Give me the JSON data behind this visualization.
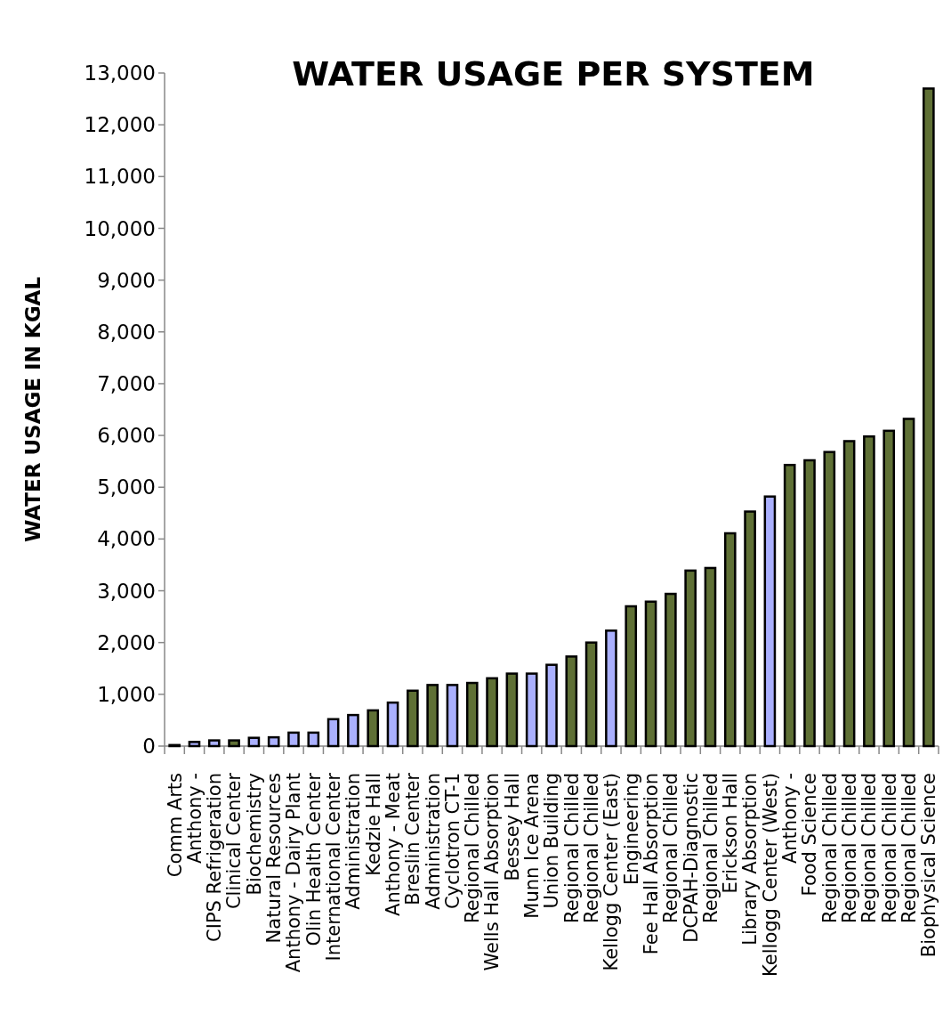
{
  "chart_data": {
    "type": "bar",
    "title": "WATER USAGE PER SYSTEM",
    "ylabel": "WATER USAGE IN KGAL",
    "categories": [
      "Comm Arts",
      "Anthony -",
      "CIPS Refrigeration",
      "Clinical Center",
      "Biochemistry",
      "Natural Resources",
      "Anthony - Dairy Plant",
      "Olin Health Center",
      "International Center",
      "Administration",
      "Kedzie Hall",
      "Anthony - Meat",
      "Breslin Center",
      "Administration",
      "Cyclotron CT-1",
      "Regional Chilled",
      "Wells Hall Absorption",
      "Bessey Hall",
      "Munn Ice Arena",
      "Union Building",
      "Regional Chilled",
      "Regional Chilled",
      "Kellogg Center (East)",
      "Engineering",
      "Fee Hall Absorption",
      "Regional Chilled",
      "DCPAH-Diagnostic",
      "Regional Chilled",
      "Erickson Hall",
      "Library Absorption",
      "Kellogg Center (West)",
      "Anthony -",
      "Food Science",
      "Regional Chilled",
      "Regional Chilled",
      "Regional Chilled",
      "Regional Chilled",
      "Regional Chilled",
      "Biophysical Science"
    ],
    "values": [
      20,
      80,
      110,
      110,
      160,
      170,
      260,
      260,
      520,
      600,
      690,
      840,
      1070,
      1180,
      1180,
      1220,
      1310,
      1400,
      1400,
      1570,
      1730,
      2000,
      2230,
      2700,
      2790,
      2940,
      3390,
      3440,
      4110,
      4530,
      4820,
      5430,
      5520,
      5680,
      5890,
      5980,
      6090,
      6320,
      12700
    ],
    "colors": [
      "#5f7035",
      "#aab0fe",
      "#aab0fe",
      "#5f7035",
      "#aab0fe",
      "#aab0fe",
      "#aab0fe",
      "#aab0fe",
      "#aab0fe",
      "#aab0fe",
      "#5f7035",
      "#aab0fe",
      "#5f7035",
      "#5f7035",
      "#aab0fe",
      "#5f7035",
      "#5f7035",
      "#5f7035",
      "#aab0fe",
      "#aab0fe",
      "#5f7035",
      "#5f7035",
      "#aab0fe",
      "#5f7035",
      "#5f7035",
      "#5f7035",
      "#5f7035",
      "#5f7035",
      "#5f7035",
      "#5f7035",
      "#aab0fe",
      "#5f7035",
      "#5f7035",
      "#5f7035",
      "#5f7035",
      "#5f7035",
      "#5f7035",
      "#5f7035",
      "#5f7035"
    ],
    "ylim": [
      0,
      13000
    ],
    "yticks": [
      0,
      {
        "value": 1000,
        "label": "1,000"
      },
      {
        "value": 2000,
        "label": "2,000"
      },
      {
        "value": 3000,
        "label": "3,000"
      },
      {
        "value": 4000,
        "label": "4,000"
      },
      {
        "value": 5000,
        "label": "5,000"
      },
      {
        "value": 6000,
        "label": "6,000"
      },
      {
        "value": 7000,
        "label": "7,000"
      },
      {
        "value": 8000,
        "label": "8,000"
      },
      {
        "value": 9000,
        "label": "9,000"
      },
      {
        "value": 10000,
        "label": "10,000"
      },
      {
        "value": 11000,
        "label": "11,000"
      },
      {
        "value": 12000,
        "label": "12,000"
      },
      {
        "value": 13000,
        "label": "13,000"
      }
    ],
    "grid": false
  }
}
